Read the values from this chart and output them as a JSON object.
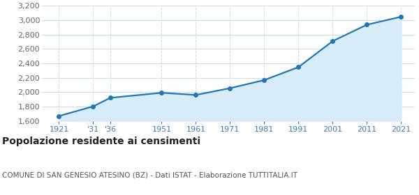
{
  "years": [
    1921,
    1931,
    1936,
    1951,
    1961,
    1971,
    1981,
    1991,
    2001,
    2011,
    2021
  ],
  "population": [
    1668,
    1802,
    1921,
    1991,
    1961,
    2055,
    2168,
    2348,
    2710,
    2938,
    3048
  ],
  "x_tick_labels": [
    "1921",
    "'31",
    "'36",
    "1951",
    "1961",
    "1971",
    "1981",
    "1991",
    "2001",
    "2011",
    "2021"
  ],
  "ylim": [
    1600,
    3200
  ],
  "yticks": [
    1600,
    1800,
    2000,
    2200,
    2400,
    2600,
    2800,
    3000,
    3200
  ],
  "xlim_left": 1916,
  "xlim_right": 2025,
  "line_color": "#1f77b4",
  "fill_color": "#d8ecf8",
  "marker_color": "#1f77b4",
  "grid_color": "#c8dcea",
  "background_color": "#ffffff",
  "title": "Popolazione residente ai censimenti",
  "subtitle": "COMUNE DI SAN GENESIO ATESINO (BZ) - Dati ISTAT - Elaborazione TUTTITALIA.IT",
  "title_fontsize": 10,
  "subtitle_fontsize": 7.5,
  "tick_fontsize": 8,
  "x_tick_color": "#3a7abf",
  "y_tick_color": "#666666"
}
